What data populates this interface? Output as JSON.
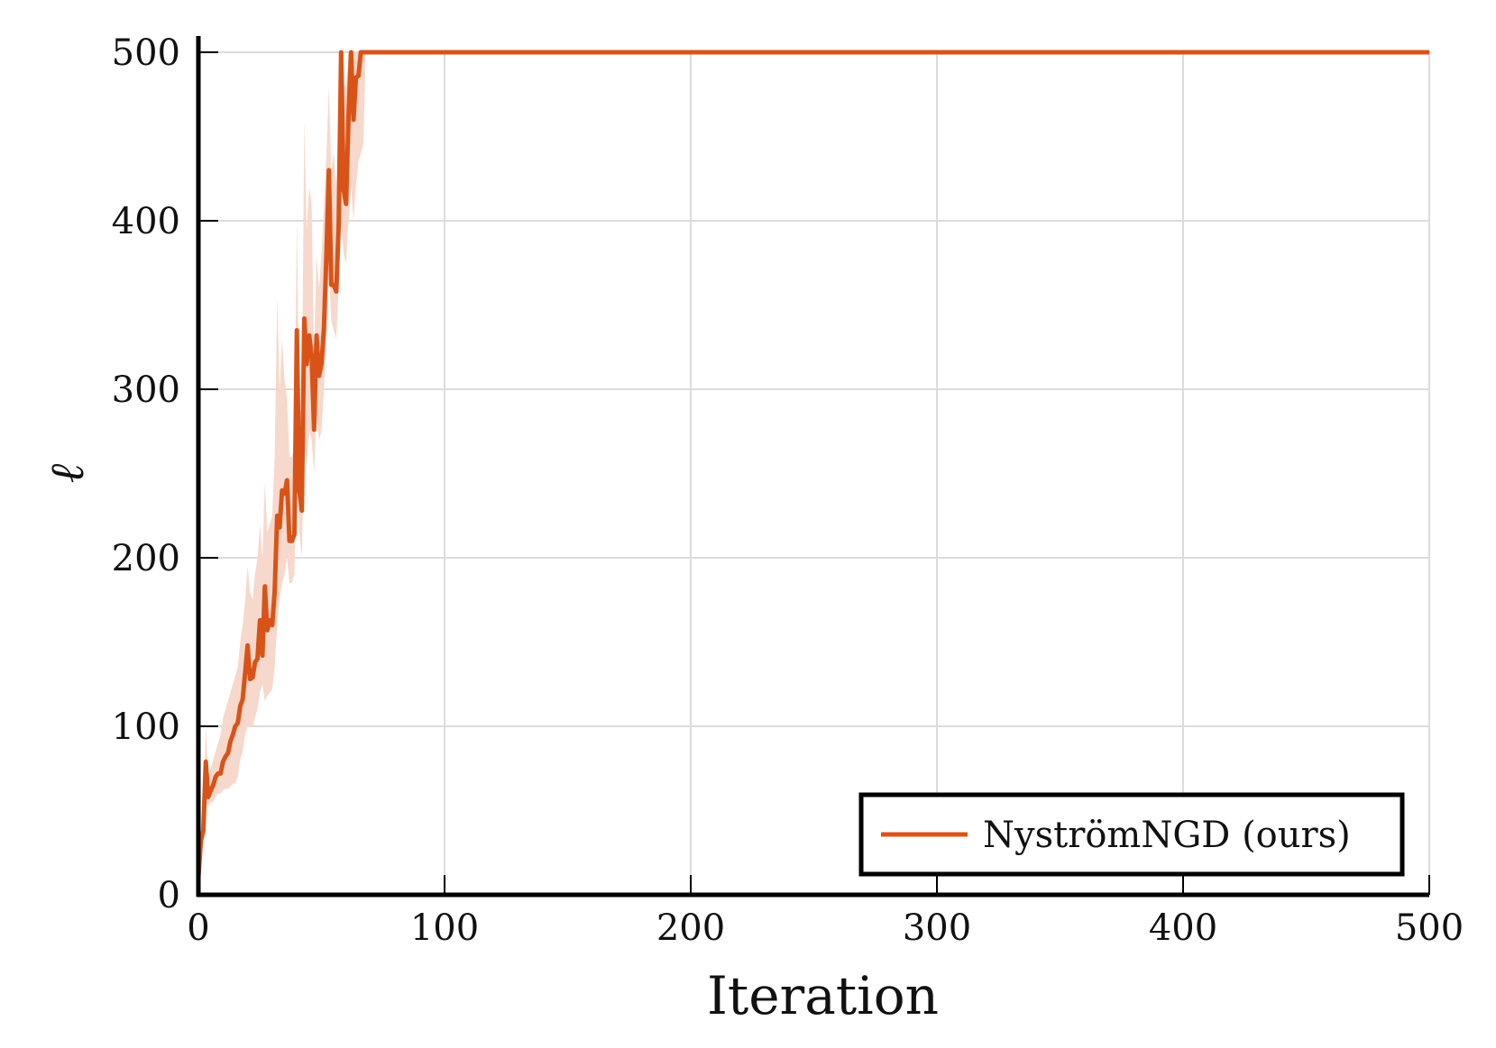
{
  "chart_data": {
    "type": "line",
    "xlabel": "Iteration",
    "ylabel": "ℓ",
    "xlim": [
      0,
      500
    ],
    "ylim": [
      0,
      500
    ],
    "xticks": [
      0,
      100,
      200,
      300,
      400,
      500
    ],
    "yticks": [
      0,
      100,
      200,
      300,
      400,
      500
    ],
    "grid": true,
    "legend_position": "bottom-right",
    "colors": {
      "line": "#d95319",
      "band": "#f6d9cc",
      "grid": "#dcdcdc",
      "axis": "#000000"
    },
    "series": [
      {
        "name": "NyströmNGD (ours)",
        "x": [
          0,
          1,
          2,
          3,
          4,
          5,
          6,
          7,
          8,
          9,
          10,
          11,
          12,
          13,
          14,
          15,
          16,
          17,
          18,
          19,
          20,
          21,
          22,
          23,
          24,
          25,
          26,
          27,
          28,
          29,
          30,
          31,
          32,
          33,
          34,
          35,
          36,
          37,
          38,
          39,
          40,
          41,
          42,
          43,
          44,
          45,
          46,
          47,
          48,
          49,
          50,
          51,
          52,
          53,
          54,
          55,
          56,
          57,
          58,
          59,
          60,
          61,
          62,
          63,
          64,
          65,
          66,
          67,
          68,
          69,
          70,
          500
        ],
        "y": [
          10,
          32,
          38,
          79,
          58,
          62,
          65,
          70,
          72,
          72,
          79,
          82,
          84,
          91,
          95,
          100,
          102,
          112,
          116,
          132,
          148,
          128,
          129,
          138,
          140,
          163,
          142,
          183,
          157,
          163,
          160,
          180,
          225,
          218,
          240,
          238,
          246,
          210,
          210,
          214,
          335,
          240,
          228,
          342,
          315,
          332,
          320,
          276,
          332,
          308,
          315,
          336,
          380,
          430,
          362,
          362,
          358,
          398,
          500,
          418,
          410,
          462,
          500,
          460,
          485,
          486,
          500,
          500,
          500,
          500,
          500,
          500
        ],
        "lower": [
          10,
          25,
          30,
          55,
          52,
          55,
          55,
          58,
          60,
          60,
          62,
          63,
          63,
          64,
          66,
          66,
          70,
          80,
          85,
          95,
          100,
          100,
          100,
          105,
          110,
          120,
          125,
          115,
          118,
          120,
          122,
          135,
          160,
          175,
          185,
          190,
          200,
          185,
          185,
          190,
          255,
          215,
          200,
          270,
          255,
          275,
          270,
          250,
          285,
          270,
          275,
          300,
          330,
          370,
          340,
          335,
          330,
          360,
          400,
          380,
          375,
          400,
          420,
          400,
          420,
          435,
          440,
          445,
          500,
          500,
          500,
          500
        ],
        "upper": [
          15,
          40,
          50,
          100,
          70,
          75,
          80,
          85,
          90,
          95,
          105,
          110,
          115,
          120,
          125,
          130,
          135,
          150,
          160,
          175,
          195,
          180,
          175,
          190,
          200,
          220,
          200,
          245,
          215,
          220,
          225,
          260,
          355,
          300,
          330,
          305,
          295,
          260,
          260,
          265,
          400,
          290,
          285,
          460,
          395,
          420,
          410,
          320,
          380,
          360,
          380,
          410,
          440,
          480,
          430,
          440,
          420,
          460,
          500,
          480,
          480,
          500,
          500,
          500,
          500,
          500,
          500,
          500,
          500,
          500,
          500,
          500
        ]
      }
    ]
  }
}
